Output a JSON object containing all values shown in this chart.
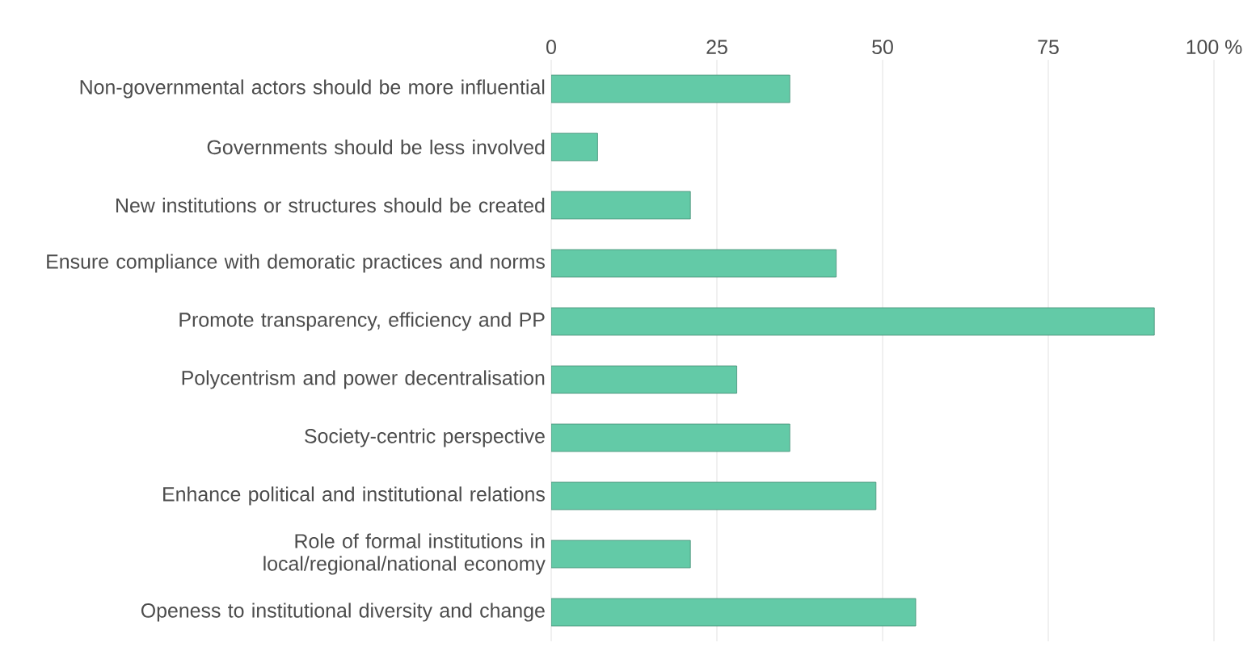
{
  "chart_data": {
    "type": "bar",
    "orientation": "horizontal",
    "categories": [
      "Non-governmental actors should be more influential",
      "Governments should be less involved",
      "New institutions or structures should be created",
      "Ensure compliance with demoratic practices and norms",
      "Promote transparency, efficiency and PP",
      "Polycentrism and power decentralisation",
      "Society-centric perspective",
      "Enhance political and institutional relations",
      "Role of formal institutions in local/regional/national economy",
      "Openess to institutional diversity and change"
    ],
    "values": [
      36,
      7,
      21,
      43,
      91,
      28,
      36,
      49,
      21,
      55
    ],
    "color": "#63caa7",
    "xlim": [
      0,
      100
    ],
    "xticks": [
      0,
      25,
      50,
      75,
      {
        "value": 100,
        "label": "100 %"
      }
    ],
    "grid": "x"
  }
}
